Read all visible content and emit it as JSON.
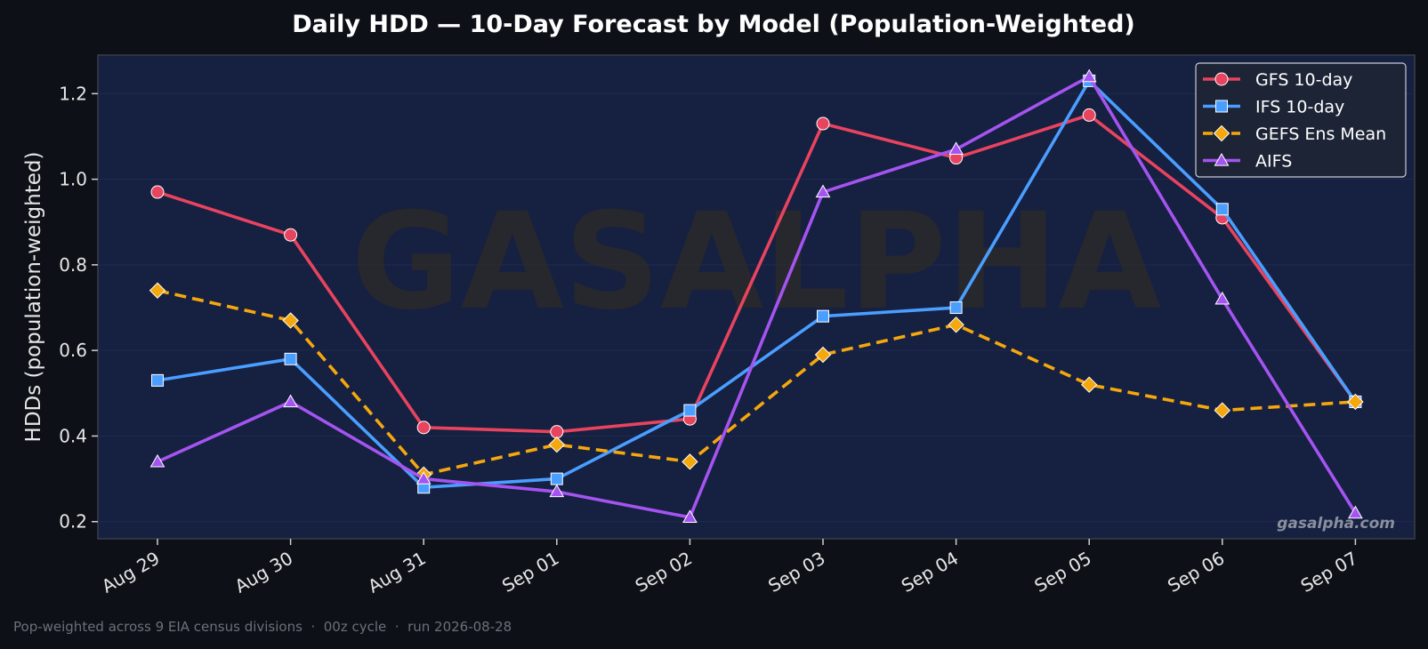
{
  "chart_data": {
    "type": "line",
    "title": "Daily HDD — 10-Day Forecast by Model (Population-Weighted)",
    "xlabel": "",
    "ylabel": "HDDs (population-weighted)",
    "ylim": [
      0.16,
      1.29
    ],
    "yticks": [
      0.2,
      0.4,
      0.6,
      0.8,
      1.0,
      1.2
    ],
    "ytick_labels": [
      "0.2",
      "0.4",
      "0.6",
      "0.8",
      "1.0",
      "1.2"
    ],
    "categories": [
      "Aug 29",
      "Aug 30",
      "Aug 31",
      "Sep 01",
      "Sep 02",
      "Sep 03",
      "Sep 04",
      "Sep 05",
      "Sep 06",
      "Sep 07"
    ],
    "grid": true,
    "legend_position": "top-right",
    "series": [
      {
        "name": "GFS 10-day",
        "color": "#e8435f",
        "marker": "circle",
        "dash": "solid",
        "values": [
          0.97,
          0.87,
          0.42,
          0.41,
          0.44,
          1.13,
          1.05,
          1.15,
          0.91,
          0.48
        ]
      },
      {
        "name": "IFS 10-day",
        "color": "#4a9eff",
        "marker": "square",
        "dash": "solid",
        "values": [
          0.53,
          0.58,
          0.28,
          0.3,
          0.46,
          0.68,
          0.7,
          1.23,
          0.93,
          0.48
        ]
      },
      {
        "name": "GEFS Ens Mean",
        "color": "#f5a70e",
        "marker": "diamond",
        "dash": "dashed",
        "values": [
          0.74,
          0.67,
          0.31,
          0.38,
          0.34,
          0.59,
          0.66,
          0.52,
          0.46,
          0.48
        ]
      },
      {
        "name": "AIFS",
        "color": "#a454f0",
        "marker": "triangle",
        "dash": "solid",
        "values": [
          0.34,
          0.48,
          0.3,
          0.27,
          0.21,
          0.97,
          1.07,
          1.24,
          0.72,
          0.22
        ]
      }
    ],
    "watermark": "GASALPHA",
    "site": "gasalpha.com",
    "footer": "Pop-weighted across 9 EIA census divisions  ·  00z cycle  ·  run 2026-08-28",
    "colors": {
      "background": "#0d1117",
      "plot_background": "#162040",
      "grid": "#22305a"
    }
  }
}
